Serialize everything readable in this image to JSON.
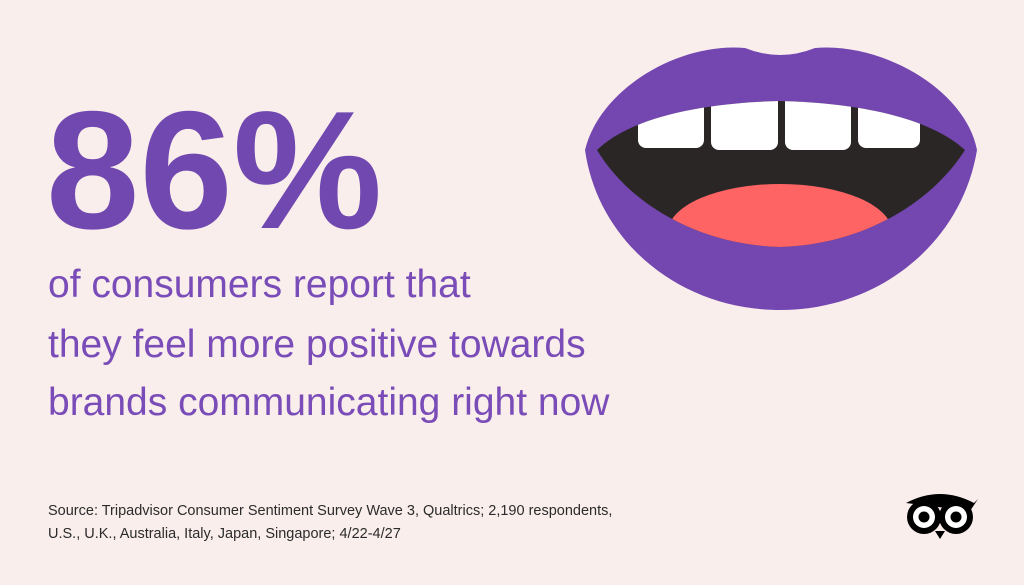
{
  "headline": {
    "stat": "86%",
    "lines": [
      "of consumers report that",
      "they feel more positive towards",
      "brands communicating right now"
    ]
  },
  "source": {
    "lines": [
      "Source: Tripadvisor Consumer Sentiment Survey Wave 3, Qualtrics; 2,190 respondents,",
      "U.S., U.K., Australia, Italy, Japan, Singapore; 4/22-4/27"
    ]
  }
}
